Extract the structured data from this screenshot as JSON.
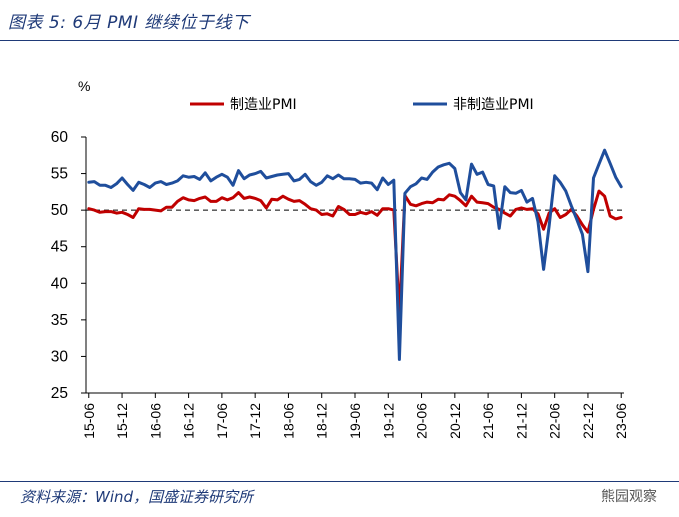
{
  "figure": {
    "title": "图表 5:  6月 PMI 继续位于线下",
    "source": "资料来源：Wind，国盛证券研究所",
    "watermark": "熊园观察"
  },
  "chart_data": {
    "type": "line",
    "ylabel": "%",
    "ylim": [
      25,
      60
    ],
    "yticks": [
      25,
      30,
      35,
      40,
      45,
      50,
      55,
      60
    ],
    "grid": false,
    "legend": "top",
    "reference_line": 50,
    "x_tick_labels": [
      "15-06",
      "15-12",
      "16-06",
      "16-12",
      "17-06",
      "17-12",
      "18-06",
      "18-12",
      "19-06",
      "19-12",
      "20-06",
      "20-12",
      "21-06",
      "21-12",
      "22-06",
      "22-12",
      "23-06"
    ],
    "x": [
      "15-06",
      "15-07",
      "15-08",
      "15-09",
      "15-10",
      "15-11",
      "15-12",
      "16-01",
      "16-02",
      "16-03",
      "16-04",
      "16-05",
      "16-06",
      "16-07",
      "16-08",
      "16-09",
      "16-10",
      "16-11",
      "16-12",
      "17-01",
      "17-02",
      "17-03",
      "17-04",
      "17-05",
      "17-06",
      "17-07",
      "17-08",
      "17-09",
      "17-10",
      "17-11",
      "17-12",
      "18-01",
      "18-02",
      "18-03",
      "18-04",
      "18-05",
      "18-06",
      "18-07",
      "18-08",
      "18-09",
      "18-10",
      "18-11",
      "18-12",
      "19-01",
      "19-02",
      "19-03",
      "19-04",
      "19-05",
      "19-06",
      "19-07",
      "19-08",
      "19-09",
      "19-10",
      "19-11",
      "19-12",
      "20-01",
      "20-02",
      "20-03",
      "20-04",
      "20-05",
      "20-06",
      "20-07",
      "20-08",
      "20-09",
      "20-10",
      "20-11",
      "20-12",
      "21-01",
      "21-02",
      "21-03",
      "21-04",
      "21-05",
      "21-06",
      "21-07",
      "21-08",
      "21-09",
      "21-10",
      "21-11",
      "21-12",
      "22-01",
      "22-02",
      "22-03",
      "22-04",
      "22-05",
      "22-06",
      "22-07",
      "22-08",
      "22-09",
      "22-10",
      "22-11",
      "22-12",
      "23-01",
      "23-02",
      "23-03",
      "23-04",
      "23-05",
      "23-06"
    ],
    "series": [
      {
        "name": "制造业PMI",
        "color": "#c00000",
        "values": [
          50.2,
          50.0,
          49.7,
          49.8,
          49.8,
          49.6,
          49.7,
          49.4,
          49.0,
          50.2,
          50.1,
          50.1,
          50.0,
          49.9,
          50.4,
          50.4,
          51.2,
          51.7,
          51.4,
          51.3,
          51.6,
          51.8,
          51.2,
          51.2,
          51.7,
          51.4,
          51.7,
          52.4,
          51.6,
          51.8,
          51.6,
          51.3,
          50.3,
          51.5,
          51.4,
          51.9,
          51.5,
          51.2,
          51.3,
          50.8,
          50.2,
          50.0,
          49.4,
          49.5,
          49.2,
          50.5,
          50.1,
          49.4,
          49.4,
          49.7,
          49.5,
          49.8,
          49.3,
          50.2,
          50.2,
          50.0,
          35.7,
          52.0,
          50.8,
          50.6,
          50.9,
          51.1,
          51.0,
          51.5,
          51.4,
          52.1,
          51.9,
          51.3,
          50.6,
          51.9,
          51.1,
          51.0,
          50.9,
          50.4,
          50.1,
          49.6,
          49.2,
          50.1,
          50.3,
          50.1,
          50.2,
          49.5,
          47.4,
          49.6,
          50.2,
          49.0,
          49.4,
          50.1,
          49.2,
          48.0,
          47.0,
          50.1,
          52.6,
          51.9,
          49.2,
          48.8,
          49.0
        ]
      },
      {
        "name": "非制造业PMI",
        "color": "#1f4e9c",
        "values": [
          53.8,
          53.9,
          53.4,
          53.4,
          53.1,
          53.6,
          54.4,
          53.5,
          52.7,
          53.8,
          53.5,
          53.1,
          53.7,
          53.9,
          53.5,
          53.7,
          54.0,
          54.7,
          54.5,
          54.6,
          54.2,
          55.1,
          54.0,
          54.5,
          54.9,
          54.5,
          53.4,
          55.4,
          54.3,
          54.8,
          55.0,
          55.3,
          54.4,
          54.6,
          54.8,
          54.9,
          55.0,
          54.0,
          54.2,
          54.9,
          53.9,
          53.4,
          53.8,
          54.7,
          54.3,
          54.8,
          54.3,
          54.3,
          54.2,
          53.7,
          53.8,
          53.7,
          52.8,
          54.4,
          53.5,
          54.1,
          29.6,
          52.3,
          53.2,
          53.6,
          54.4,
          54.2,
          55.2,
          55.9,
          56.2,
          56.4,
          55.7,
          52.4,
          51.4,
          56.3,
          54.9,
          55.2,
          53.5,
          53.3,
          47.5,
          53.2,
          52.4,
          52.3,
          52.7,
          51.1,
          51.6,
          48.4,
          41.9,
          47.8,
          54.7,
          53.8,
          52.6,
          50.6,
          48.7,
          46.7,
          41.6,
          54.4,
          56.3,
          58.2,
          56.4,
          54.5,
          53.2
        ]
      }
    ]
  }
}
